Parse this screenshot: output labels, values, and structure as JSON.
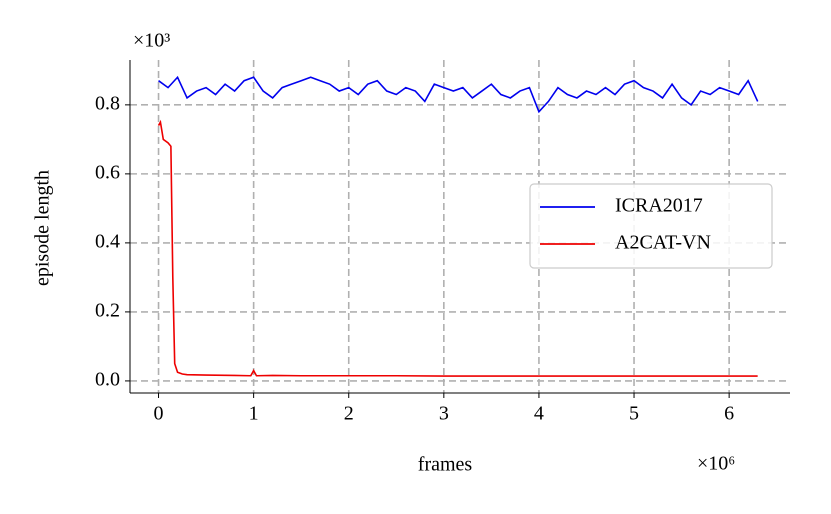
{
  "chart_data": {
    "type": "line",
    "xlabel": "frames",
    "ylabel": "episode length",
    "x_offset_label": "×10⁶",
    "y_offset_label": "×10³",
    "xlim": [
      -0.3,
      6.64
    ],
    "ylim": [
      -0.035,
      0.93
    ],
    "xticks": [
      0,
      1,
      2,
      3,
      4,
      5,
      6
    ],
    "yticks": [
      {
        "value": 0,
        "label": "0.0"
      },
      0.2,
      0.4,
      0.6,
      0.8
    ],
    "grid": true,
    "legend": "center right",
    "series": [
      {
        "name": "ICRA2017",
        "color": "#0000ee",
        "x": [
          0,
          0.1,
          0.2,
          0.3,
          0.4,
          0.5,
          0.6,
          0.7,
          0.8,
          0.9,
          1.0,
          1.1,
          1.2,
          1.3,
          1.4,
          1.5,
          1.6,
          1.7,
          1.8,
          1.9,
          2.0,
          2.1,
          2.2,
          2.3,
          2.4,
          2.5,
          2.6,
          2.7,
          2.8,
          2.9,
          3.0,
          3.1,
          3.2,
          3.3,
          3.4,
          3.5,
          3.6,
          3.7,
          3.8,
          3.9,
          4.0,
          4.1,
          4.2,
          4.3,
          4.4,
          4.5,
          4.6,
          4.7,
          4.8,
          4.9,
          5.0,
          5.1,
          5.2,
          5.3,
          5.4,
          5.5,
          5.6,
          5.7,
          5.8,
          5.9,
          6.0,
          6.1,
          6.2,
          6.3
        ],
        "values": [
          0.87,
          0.85,
          0.88,
          0.82,
          0.84,
          0.85,
          0.83,
          0.86,
          0.84,
          0.87,
          0.88,
          0.84,
          0.82,
          0.85,
          0.86,
          0.87,
          0.88,
          0.87,
          0.86,
          0.84,
          0.85,
          0.83,
          0.86,
          0.87,
          0.84,
          0.83,
          0.85,
          0.84,
          0.81,
          0.86,
          0.85,
          0.84,
          0.85,
          0.82,
          0.84,
          0.86,
          0.83,
          0.82,
          0.84,
          0.85,
          0.78,
          0.81,
          0.85,
          0.83,
          0.82,
          0.84,
          0.83,
          0.85,
          0.83,
          0.86,
          0.87,
          0.85,
          0.84,
          0.82,
          0.86,
          0.82,
          0.8,
          0.84,
          0.83,
          0.85,
          0.84,
          0.83,
          0.87,
          0.81
        ]
      },
      {
        "name": "A2CAT-VN",
        "color": "#ee0000",
        "x": [
          0,
          0.02,
          0.05,
          0.1,
          0.13,
          0.15,
          0.17,
          0.2,
          0.25,
          0.3,
          0.5,
          0.8,
          0.97,
          1.0,
          1.03,
          1.2,
          1.5,
          2,
          2.5,
          3,
          3.5,
          4,
          4.5,
          5,
          5.5,
          6,
          6.3
        ],
        "values": [
          0.74,
          0.75,
          0.7,
          0.69,
          0.68,
          0.3,
          0.05,
          0.025,
          0.02,
          0.018,
          0.017,
          0.016,
          0.015,
          0.03,
          0.015,
          0.016,
          0.015,
          0.015,
          0.015,
          0.014,
          0.014,
          0.014,
          0.014,
          0.014,
          0.014,
          0.014,
          0.014
        ]
      }
    ]
  }
}
